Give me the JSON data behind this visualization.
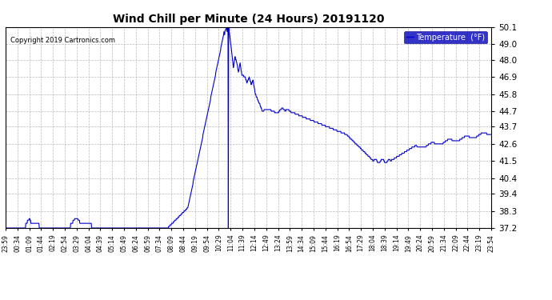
{
  "title": "Wind Chill per Minute (24 Hours) 20191120",
  "copyright": "Copyright 2019 Cartronics.com",
  "legend_label": "Temperature  (°F)",
  "line_color": "#0000cc",
  "background_color": "#ffffff",
  "plot_bg_color": "#ffffff",
  "grid_color": "#aaaaaa",
  "ylim": [
    37.2,
    50.1
  ],
  "yticks": [
    37.2,
    38.3,
    39.4,
    40.4,
    41.5,
    42.6,
    43.7,
    44.7,
    45.8,
    46.9,
    48.0,
    49.0,
    50.1
  ],
  "xtick_labels": [
    "23:59",
    "00:34",
    "01:09",
    "01:44",
    "02:19",
    "02:54",
    "03:29",
    "04:04",
    "04:39",
    "05:14",
    "05:49",
    "06:24",
    "06:59",
    "07:34",
    "08:09",
    "08:44",
    "09:19",
    "09:54",
    "10:29",
    "11:04",
    "11:39",
    "12:14",
    "12:49",
    "13:24",
    "13:59",
    "14:34",
    "15:09",
    "15:44",
    "16:19",
    "16:54",
    "17:29",
    "18:04",
    "18:39",
    "19:14",
    "19:49",
    "20:24",
    "20:59",
    "21:34",
    "22:09",
    "22:44",
    "23:19",
    "23:54"
  ],
  "n_points": 1440,
  "figsize": [
    6.9,
    3.75
  ],
  "dpi": 100
}
